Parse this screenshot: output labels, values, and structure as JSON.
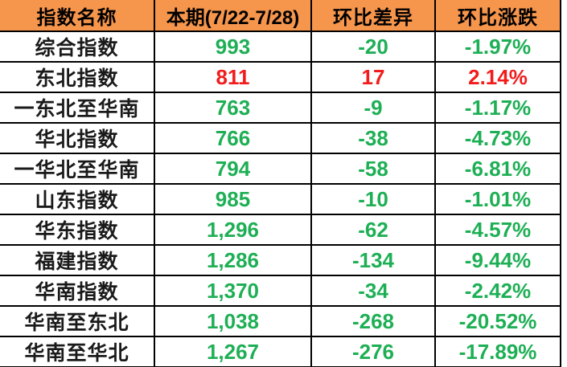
{
  "colors": {
    "header_bg": "#F6954C",
    "header_text": "#000000",
    "name_text": "#1A1A1A",
    "up": "#F21C1C",
    "down": "#1EAF55",
    "border": "#000000"
  },
  "table": {
    "columns": [
      {
        "label": "指数名称"
      },
      {
        "label": "本期(7/22-7/28)"
      },
      {
        "label": "环比差异"
      },
      {
        "label": "环比涨跌"
      }
    ],
    "rows": [
      {
        "name": "综合指数",
        "current": "993",
        "diff": "-20",
        "pct": "-1.97%",
        "trend": "down"
      },
      {
        "name": "东北指数",
        "current": "811",
        "diff": "17",
        "pct": "2.14%",
        "trend": "up"
      },
      {
        "name": "一东北至华南",
        "current": "763",
        "diff": "-9",
        "pct": "-1.17%",
        "trend": "down"
      },
      {
        "name": "华北指数",
        "current": "766",
        "diff": "-38",
        "pct": "-4.73%",
        "trend": "down"
      },
      {
        "name": "一华北至华南",
        "current": "794",
        "diff": "-58",
        "pct": "-6.81%",
        "trend": "down"
      },
      {
        "name": "山东指数",
        "current": "985",
        "diff": "-10",
        "pct": "-1.01%",
        "trend": "down"
      },
      {
        "name": "华东指数",
        "current": "1,296",
        "diff": "-62",
        "pct": "-4.57%",
        "trend": "down"
      },
      {
        "name": "福建指数",
        "current": "1,286",
        "diff": "-134",
        "pct": "-9.44%",
        "trend": "down"
      },
      {
        "name": "华南指数",
        "current": "1,370",
        "diff": "-34",
        "pct": "-2.42%",
        "trend": "down"
      },
      {
        "name": "华南至东北",
        "current": "1,038",
        "diff": "-268",
        "pct": "-20.52%",
        "trend": "down"
      },
      {
        "name": "华南至华北",
        "current": "1,267",
        "diff": "-276",
        "pct": "-17.89%",
        "trend": "down"
      }
    ]
  },
  "chart_data": {
    "type": "table",
    "title": "",
    "columns": [
      "指数名称",
      "本期(7/22-7/28)",
      "环比差异",
      "环比涨跌"
    ],
    "rows": [
      [
        "综合指数",
        993,
        -20,
        "-1.97%"
      ],
      [
        "东北指数",
        811,
        17,
        "2.14%"
      ],
      [
        "一东北至华南",
        763,
        -9,
        "-1.17%"
      ],
      [
        "华北指数",
        766,
        -38,
        "-4.73%"
      ],
      [
        "一华北至华南",
        794,
        -58,
        "-6.81%"
      ],
      [
        "山东指数",
        985,
        -10,
        "-1.01%"
      ],
      [
        "华东指数",
        1296,
        -62,
        "-4.57%"
      ],
      [
        "福建指数",
        1286,
        -134,
        "-9.44%"
      ],
      [
        "华南指数",
        1370,
        -34,
        "-2.42%"
      ],
      [
        "华南至东北",
        1038,
        -268,
        "-20.52%"
      ],
      [
        "华南至华北",
        1267,
        -276,
        "-17.89%"
      ]
    ],
    "legend": "green = decline, red = rise",
    "layout": "header row orange, black grid borders, values centered"
  }
}
